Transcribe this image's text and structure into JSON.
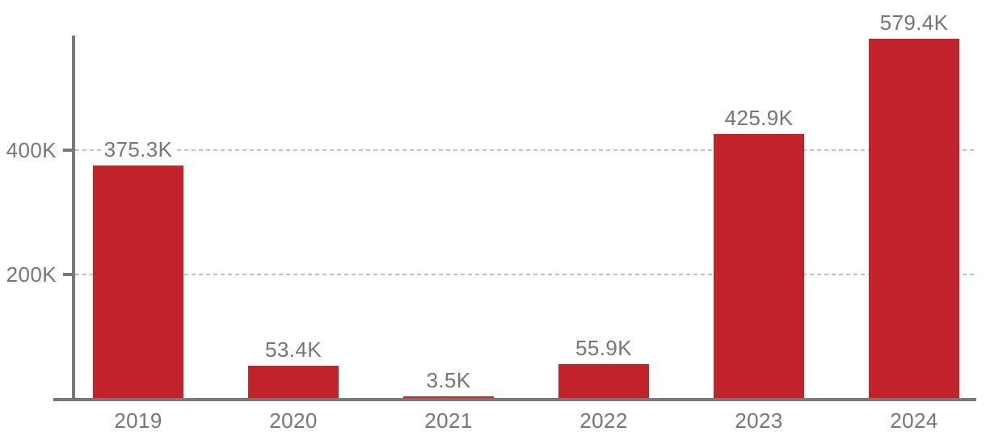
{
  "chart_data": {
    "type": "bar",
    "title": "",
    "xlabel": "",
    "ylabel": "",
    "categories": [
      "2019",
      "2020",
      "2021",
      "2022",
      "2023",
      "2024"
    ],
    "values": [
      375300,
      53400,
      3500,
      55900,
      425900,
      579400
    ],
    "value_labels": [
      "375.3K",
      "53.4K",
      "3.5K",
      "55.9K",
      "425.9K",
      "579.4K"
    ],
    "series_name": "",
    "y_ticks": [
      {
        "value": 200000,
        "label": "200K"
      },
      {
        "value": 400000,
        "label": "400K"
      }
    ],
    "ylim": [
      0,
      585000
    ],
    "grid": "horizontal-dashed",
    "legend_position": "none",
    "colors": {
      "bar": "#C2222A",
      "axis": "#787878",
      "gridline": "#B7C3CC",
      "text": "#767676"
    }
  }
}
